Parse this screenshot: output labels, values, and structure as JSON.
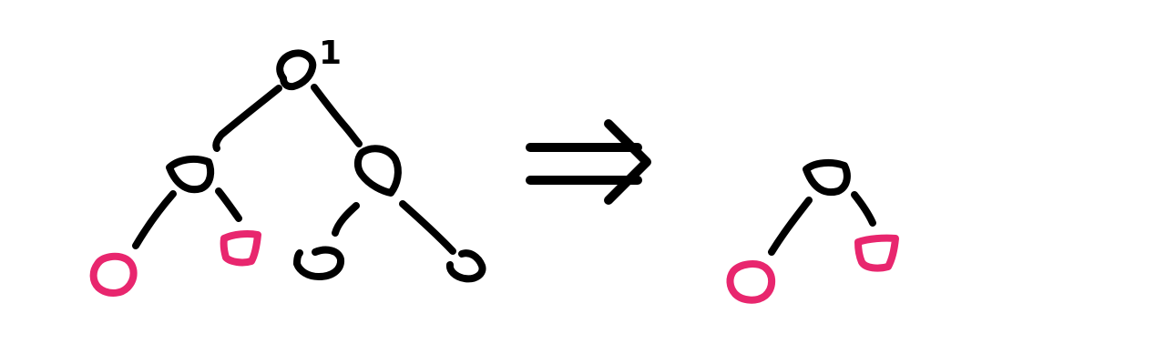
{
  "colors": {
    "ink": "#000000",
    "highlight": "#e8266e",
    "background": "#ffffff"
  },
  "left_tree": {
    "root_label": "1",
    "nodes": [
      {
        "id": "root",
        "role": "root",
        "highlight": false
      },
      {
        "id": "left-child",
        "role": "internal",
        "highlight": false
      },
      {
        "id": "right-child",
        "role": "internal",
        "highlight": false
      },
      {
        "id": "left-left-leaf",
        "role": "leaf",
        "highlight": true
      },
      {
        "id": "left-right-leaf",
        "role": "leaf",
        "highlight": true
      },
      {
        "id": "right-left-leaf",
        "role": "leaf",
        "highlight": false
      },
      {
        "id": "right-right-leaf",
        "role": "leaf",
        "highlight": false
      }
    ]
  },
  "arrow": {
    "symbol": "implies-arrow"
  },
  "right_tree": {
    "nodes": [
      {
        "id": "root",
        "role": "root",
        "highlight": false
      },
      {
        "id": "left-leaf",
        "role": "leaf",
        "highlight": true
      },
      {
        "id": "right-leaf",
        "role": "leaf",
        "highlight": true
      }
    ]
  }
}
